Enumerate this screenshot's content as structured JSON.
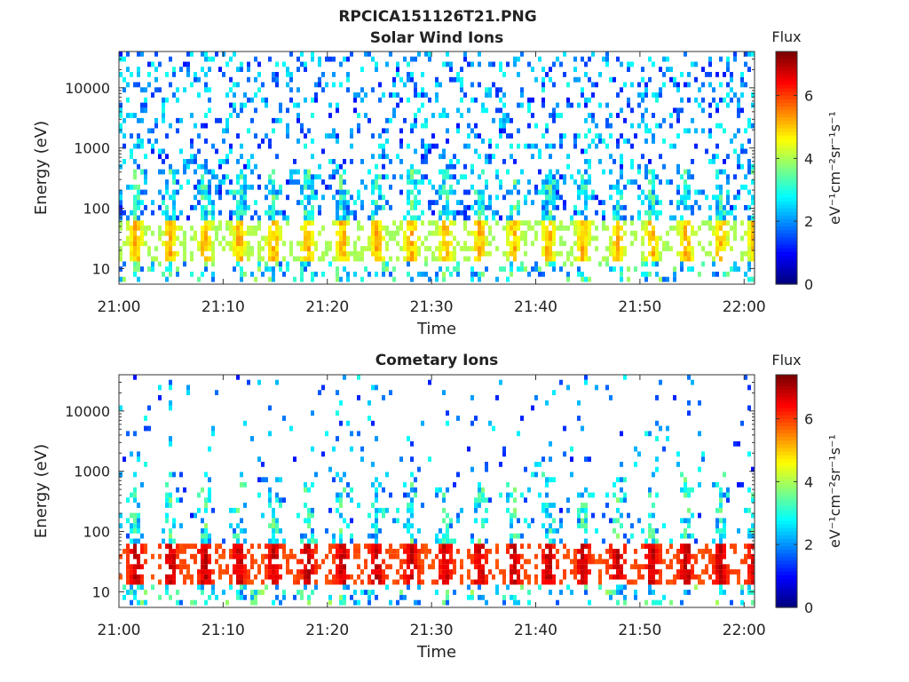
{
  "figure": {
    "title": "RPCICA151126T21.PNG"
  },
  "chart_data": [
    {
      "type": "heatmap",
      "title": "Solar Wind Ions",
      "xlabel": "Time",
      "ylabel": "Energy (eV)",
      "x_ticks": [
        "21:00",
        "21:10",
        "21:20",
        "21:30",
        "21:40",
        "21:50",
        "22:00"
      ],
      "x_range": [
        "21:00",
        "22:01"
      ],
      "y_scale": "log",
      "y_ticks": [
        10,
        100,
        1000,
        10000
      ],
      "y_range": [
        5.5,
        40000
      ],
      "colorbar": {
        "label_top": "Flux",
        "label_side": "eV⁻¹cm⁻²sr⁻¹s⁻¹",
        "ticks": [
          0,
          2,
          4,
          6
        ],
        "range": [
          0,
          7.4
        ],
        "colormap": "jet"
      },
      "grid": false,
      "description_values": {
        "core_band_energy_eV": [
          12,
          60
        ],
        "core_band_flux": [
          3.5,
          5.5
        ],
        "sparse_high_energy_flux": [
          1,
          3
        ],
        "burst_period_minutes": 3.3
      }
    },
    {
      "type": "heatmap",
      "title": "Cometary Ions",
      "xlabel": "Time",
      "ylabel": "Energy (eV)",
      "x_ticks": [
        "21:00",
        "21:10",
        "21:20",
        "21:30",
        "21:40",
        "21:50",
        "22:00"
      ],
      "x_range": [
        "21:00",
        "22:01"
      ],
      "y_scale": "log",
      "y_ticks": [
        10,
        100,
        1000,
        10000
      ],
      "y_range": [
        5.5,
        40000
      ],
      "colorbar": {
        "label_top": "Flux",
        "label_side": "eV⁻¹cm⁻²sr⁻¹s⁻¹",
        "ticks": [
          0,
          2,
          4,
          6
        ],
        "range": [
          0,
          7.4
        ],
        "colormap": "jet"
      },
      "grid": false,
      "description_values": {
        "core_band_energy_eV": [
          12,
          60
        ],
        "core_band_flux": [
          5.5,
          7.2
        ],
        "sparse_high_energy_flux": [
          1,
          3
        ],
        "burst_period_minutes": 3.3
      }
    }
  ]
}
